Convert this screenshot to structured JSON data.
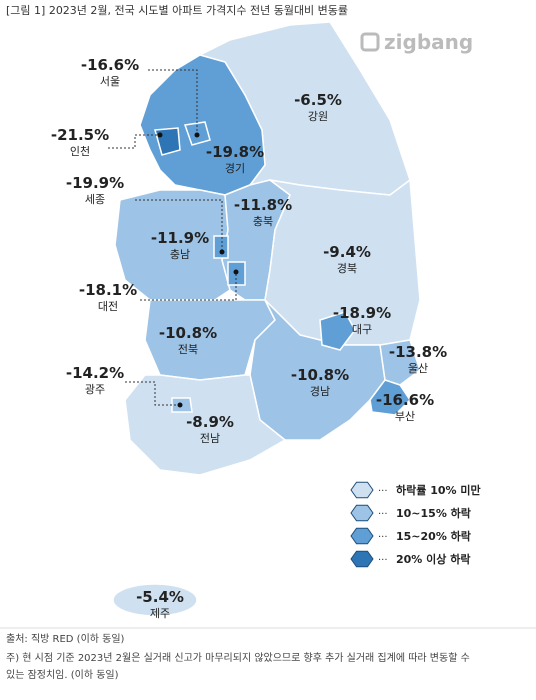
{
  "title": "[그림 1] 2023년 2월, 전국 시도별 아파트 가격지수 전년 동월대비 변동률",
  "logo": "zigbang",
  "regions": [
    {
      "name": "서울",
      "value": "-16.6%",
      "color": "#5f9fd6"
    },
    {
      "name": "강원",
      "value": "-6.5%",
      "color": "#cfe0f1"
    },
    {
      "name": "인천",
      "value": "-21.5%",
      "color": "#2e75b6"
    },
    {
      "name": "경기",
      "value": "-19.8%",
      "color": "#5f9fd6"
    },
    {
      "name": "세종",
      "value": "-19.9%",
      "color": "#5f9fd6"
    },
    {
      "name": "충북",
      "value": "-11.8%",
      "color": "#9dc3e6"
    },
    {
      "name": "충남",
      "value": "-11.9%",
      "color": "#9dc3e6"
    },
    {
      "name": "경북",
      "value": "-9.4%",
      "color": "#cfe0f1"
    },
    {
      "name": "대전",
      "value": "-18.1%",
      "color": "#5f9fd6"
    },
    {
      "name": "대구",
      "value": "-18.9%",
      "color": "#5f9fd6"
    },
    {
      "name": "전북",
      "value": "-10.8%",
      "color": "#9dc3e6"
    },
    {
      "name": "울산",
      "value": "-13.8%",
      "color": "#9dc3e6"
    },
    {
      "name": "광주",
      "value": "-14.2%",
      "color": "#9dc3e6"
    },
    {
      "name": "경남",
      "value": "-10.8%",
      "color": "#9dc3e6"
    },
    {
      "name": "부산",
      "value": "-16.6%",
      "color": "#5f9fd6"
    },
    {
      "name": "전남",
      "value": "-8.9%",
      "color": "#cfe0f1"
    },
    {
      "name": "제주",
      "value": "-5.4%",
      "color": "#cfe0f1"
    }
  ],
  "legend": [
    {
      "label": "하락률 10% 미만",
      "color": "#cfe0f1"
    },
    {
      "label": "10~15% 하락",
      "color": "#9dc3e6"
    },
    {
      "label": "15~20% 하락",
      "color": "#5f9fd6"
    },
    {
      "label": "20% 이상 하락",
      "color": "#2e75b6"
    }
  ],
  "source": "출처: 직방 RED (이하 동일)",
  "note": [
    "주) 현 시점 기준 2023년 2월은 실거래 신고가 마무리되지 않았으므로 향후 추가 실거래 집계에 따라 변동할 수",
    "있는 잠정치임. (이하 동일)"
  ]
}
